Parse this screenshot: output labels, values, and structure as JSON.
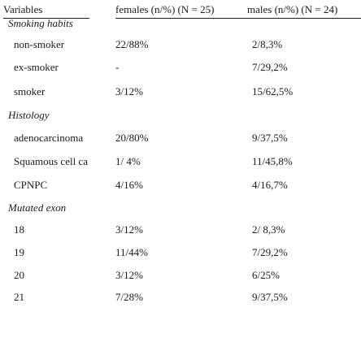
{
  "headers": {
    "variables": "Variables",
    "females": "females (n/%) (N = 25)",
    "males": "males (n/%) (N = 24)"
  },
  "rows": [
    {
      "label": "Smoking habits",
      "type": "category",
      "females": "",
      "males": ""
    },
    {
      "label": "non-smoker",
      "type": "item",
      "females": "22/88%",
      "males": "2/8,3%"
    },
    {
      "label": "ex-smoker",
      "type": "item",
      "females": "-",
      "males": "7/29,2%"
    },
    {
      "label": "smoker",
      "type": "item",
      "females": "3/12%",
      "males": "15/62,5%"
    },
    {
      "label": "Histology",
      "type": "category",
      "females": "",
      "males": ""
    },
    {
      "label": "adenocarcinoma",
      "type": "item",
      "females": "20/80%",
      "males": "9/37,5%"
    },
    {
      "label": "Squamous cell ca",
      "type": "item",
      "females": "1/ 4%",
      "males": "11/45,8%"
    },
    {
      "label": "CPNPC",
      "type": "item",
      "females": "4/16%",
      "males": "4/16,7%"
    },
    {
      "label": "Mutated exon",
      "type": "category",
      "females": "",
      "males": ""
    },
    {
      "label": "18",
      "type": "item",
      "females": "3/12%",
      "males": "2/ 8,3%"
    },
    {
      "label": "19",
      "type": "item",
      "females": "11/44%",
      "males": "7/29,2%"
    },
    {
      "label": "20",
      "type": "item",
      "females": "3/12%",
      "males": "6/25%"
    },
    {
      "label": "21",
      "type": "item",
      "females": "7/28%",
      "males": "9/37,5%"
    }
  ]
}
